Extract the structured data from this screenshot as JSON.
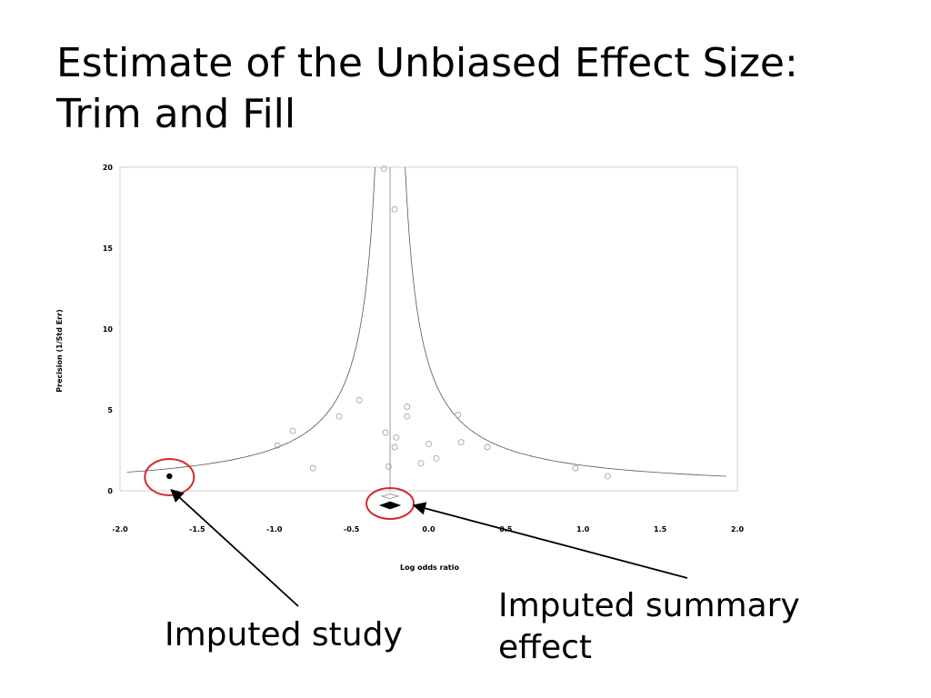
{
  "slide": {
    "title": "Estimate of the Unbiased Effect Size: Trim and Fill"
  },
  "callouts": {
    "imputed_study": "Imputed study",
    "imputed_summary": "Imputed summary effect"
  },
  "colors": {
    "highlight_circle": "#d42a2a",
    "marks": "#000000",
    "observed_point": "#9a9a9a"
  },
  "chart_data": {
    "type": "scatter",
    "title": "",
    "xlabel": "Log odds ratio",
    "ylabel": "Precision (1/Std Err)",
    "xlim": [
      -2.0,
      2.0
    ],
    "ylim": [
      0,
      20
    ],
    "x_ticks": [
      "-2.0",
      "-1.5",
      "-1.0",
      "-0.5",
      "0.0",
      "0.5",
      "1.0",
      "1.5",
      "2.0"
    ],
    "y_ticks": [
      "0",
      "5",
      "10",
      "15",
      "20"
    ],
    "grid": false,
    "funnel_center": -0.25,
    "series": [
      {
        "role": "observed",
        "marker": "open-circle",
        "x": [
          -0.29,
          -0.22,
          -0.21,
          -0.14,
          -0.14,
          -0.58,
          -0.45,
          -0.28,
          -0.22,
          -0.88,
          -0.98,
          -0.26,
          -0.75,
          0.0,
          0.19,
          0.21,
          0.38,
          0.05,
          -0.05,
          0.95,
          1.16
        ],
        "y": [
          19.9,
          17.4,
          3.3,
          5.2,
          4.6,
          4.6,
          5.6,
          3.6,
          2.7,
          3.7,
          2.8,
          1.5,
          1.4,
          2.9,
          4.7,
          3.0,
          2.7,
          2.0,
          1.7,
          1.4,
          0.9
        ]
      },
      {
        "role": "imputed",
        "marker": "filled-circle",
        "x": [
          -1.68
        ],
        "y": [
          0.9
        ]
      }
    ],
    "summary_effects": [
      {
        "role": "observed",
        "x": -0.25,
        "marker": "open-diamond"
      },
      {
        "role": "imputed",
        "x": -0.25,
        "marker": "filled-diamond"
      }
    ]
  }
}
